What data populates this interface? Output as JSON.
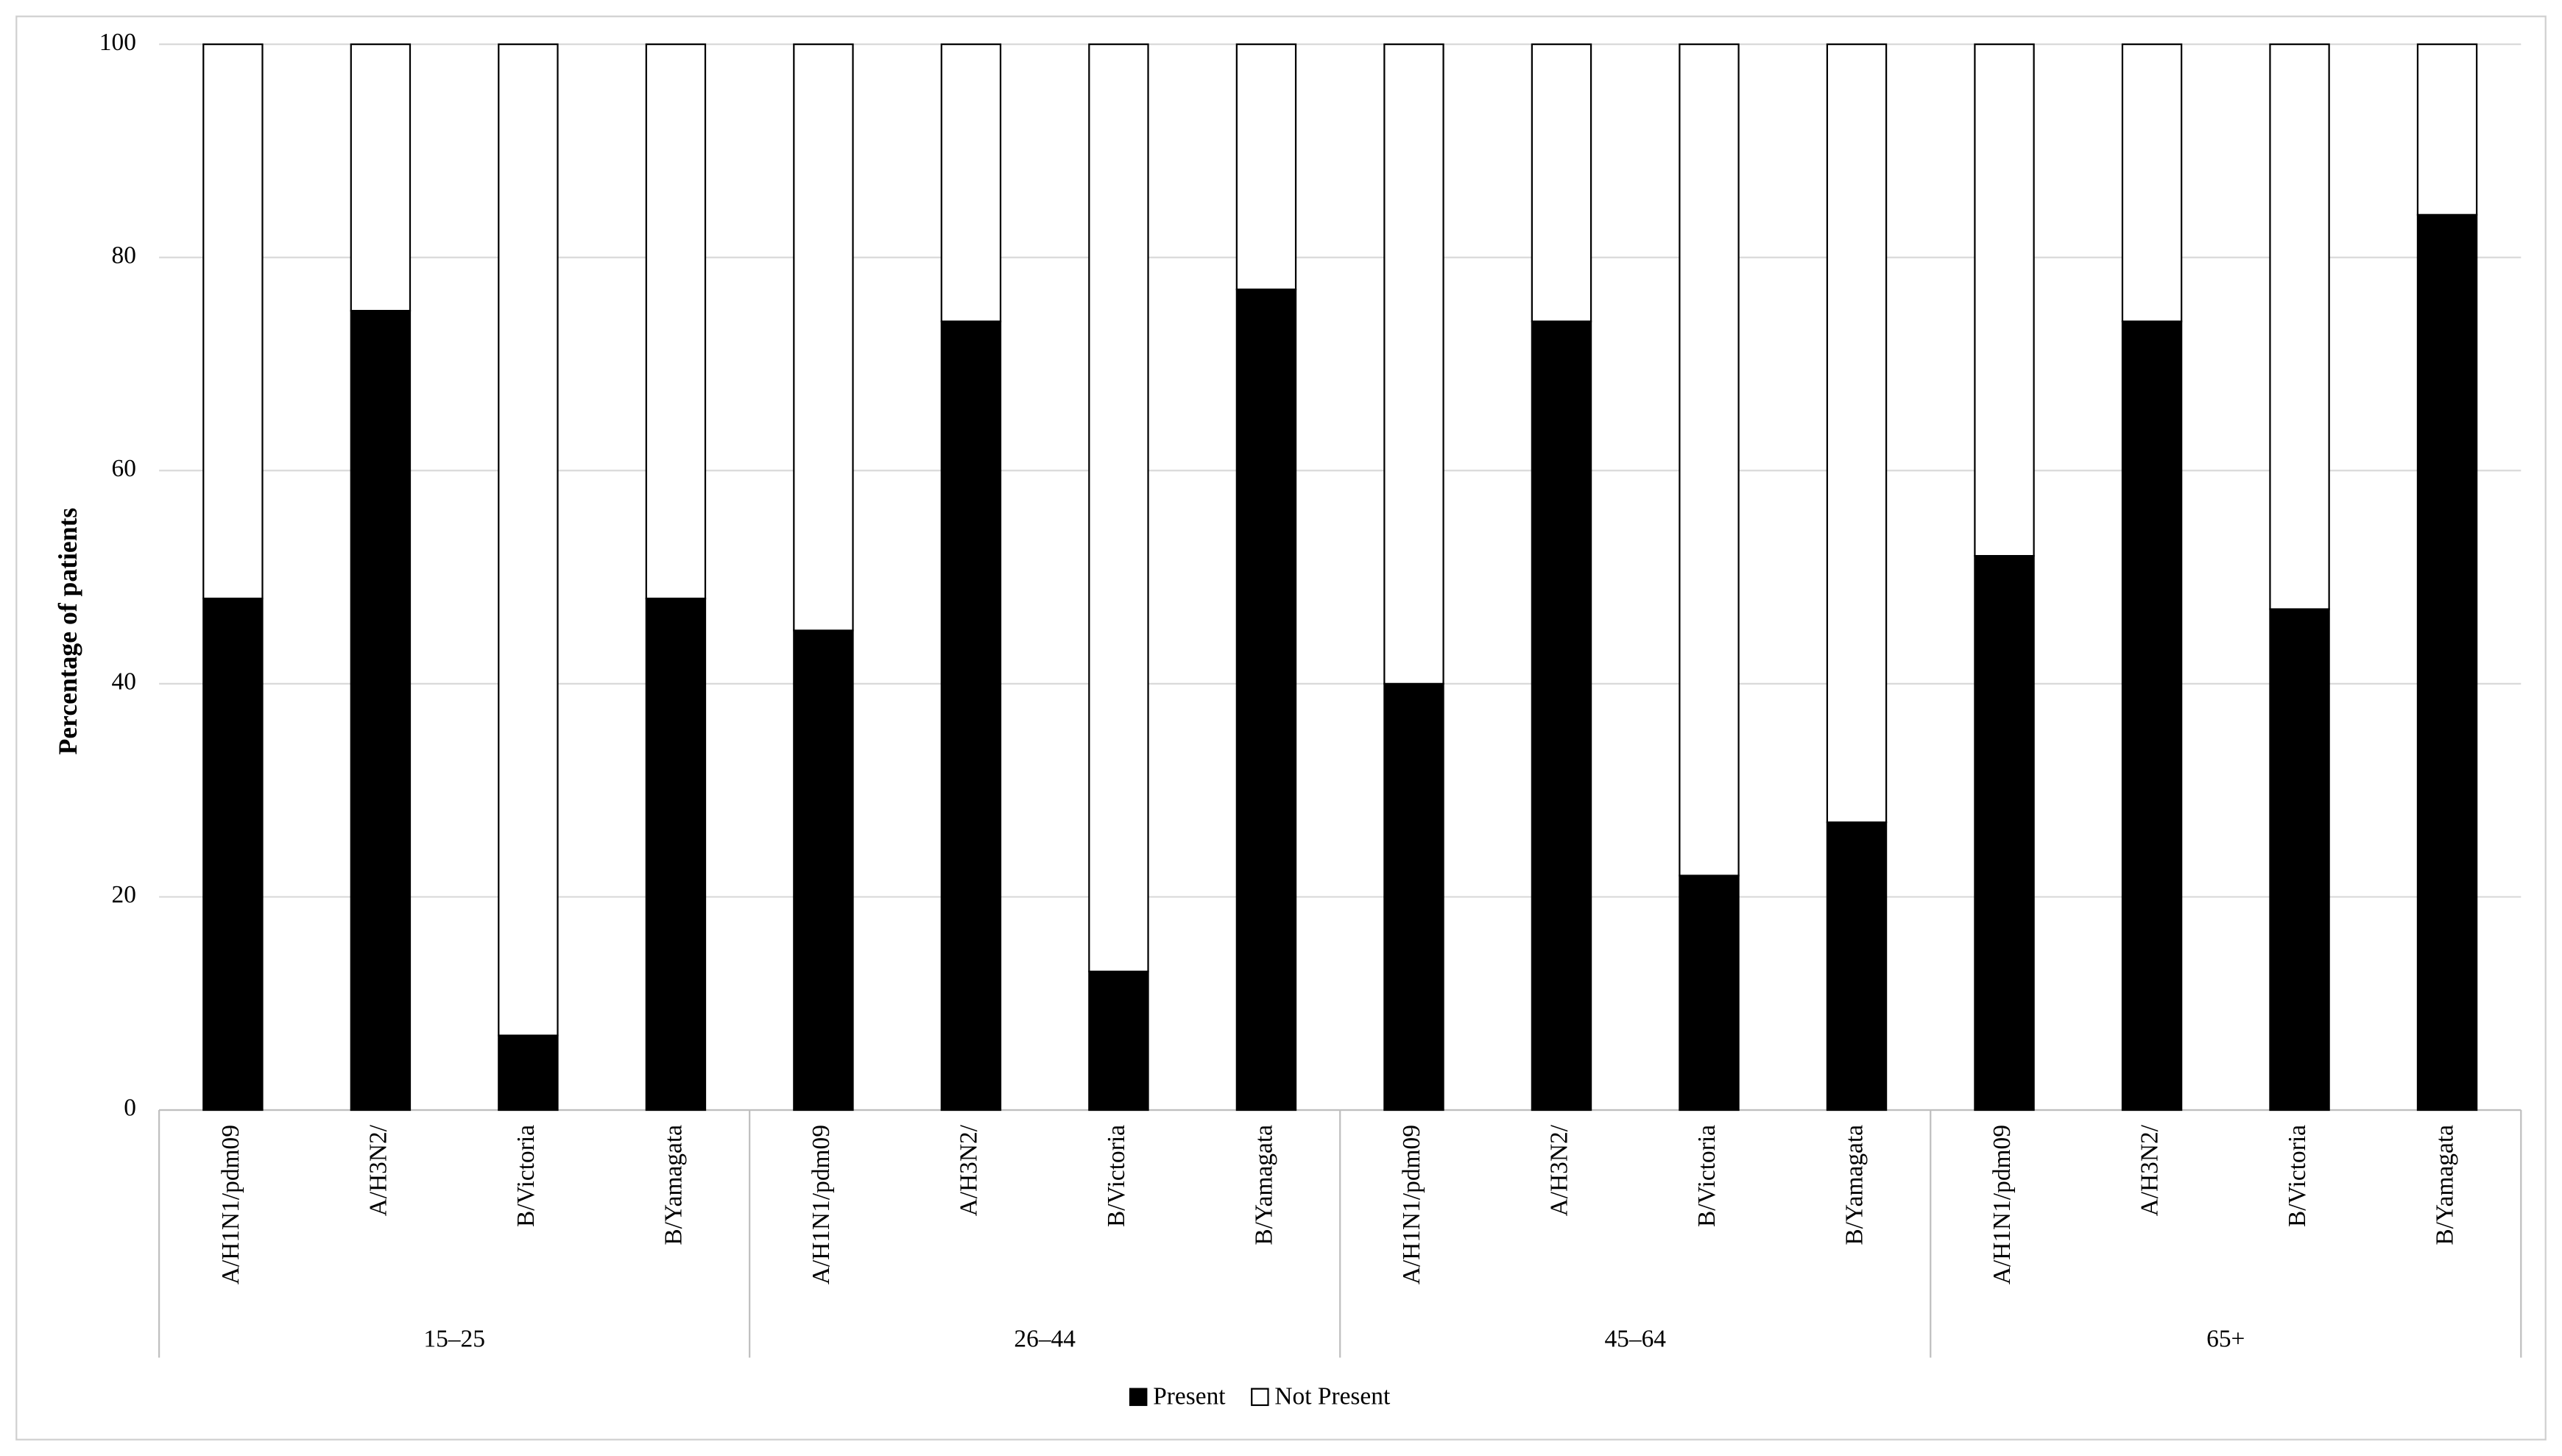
{
  "chart_data": {
    "type": "stacked_bar",
    "y_label": "Percentage of patients",
    "categories": [
      "A/H1N1/pdm09",
      "A/H3N2/",
      "B/Victoria",
      "B/Yamagata",
      "A/H1N1/pdm09",
      "A/H3N2/",
      "B/Victoria",
      "B/Yamagata",
      "A/H1N1/pdm09",
      "A/H3N2/",
      "B/Victoria",
      "B/Yamagata",
      "A/H1N1/pdm09",
      "A/H3N2/",
      "B/Victoria",
      "B/Yamagata"
    ],
    "groups": [
      "15–25",
      "26–44",
      "45–64",
      "65+"
    ],
    "series": [
      {
        "name": "Present",
        "color": "#000000",
        "values": [
          48,
          75,
          7,
          48,
          45,
          74,
          13,
          77,
          40,
          74,
          22,
          27,
          52,
          74,
          47,
          84
        ]
      },
      {
        "name": "Not Present",
        "color": "#ffffff",
        "values": [
          52,
          25,
          93,
          52,
          55,
          26,
          87,
          23,
          60,
          26,
          78,
          73,
          48,
          26,
          53,
          16
        ]
      }
    ],
    "ylim": [
      0,
      100
    ],
    "yticks": [
      0,
      20,
      40,
      60,
      80,
      100
    ],
    "grid": true,
    "legend": "bottom"
  }
}
